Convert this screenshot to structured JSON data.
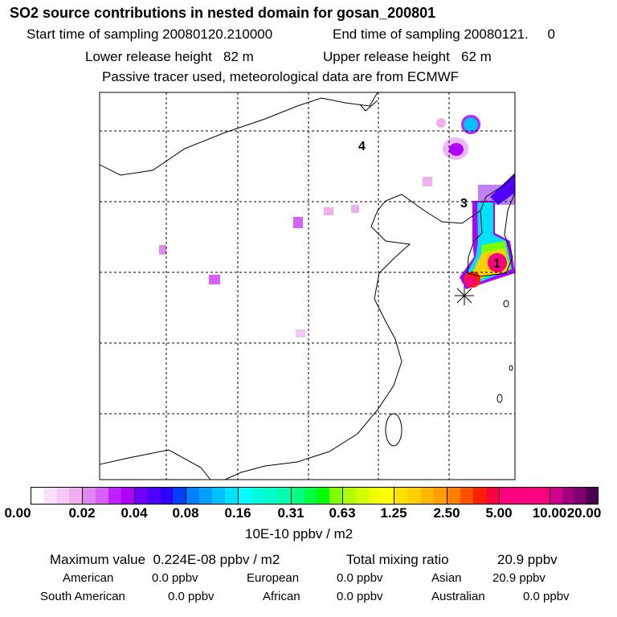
{
  "header": {
    "title": "SO2 source contributions in nested domain for gosan_200801",
    "start_label": "Start time of sampling 20080120.210000",
    "end_label": "End time of sampling 20080121.     0",
    "lower_label": "Lower release height   82 m",
    "upper_label": "Upper release height   62 m",
    "note": "Passive tracer used, meteorological data are from ECMWF"
  },
  "map": {
    "cluster_labels": [
      "4",
      "3",
      "1"
    ]
  },
  "colorbar": {
    "ticks": [
      "0.00",
      "0.02",
      "0.04",
      "0.08",
      "0.16",
      "0.31",
      "0.63",
      "1.25",
      "2.50",
      "5.00",
      "10.00",
      "20.00"
    ],
    "segment_colors": [
      [
        "#ffffff",
        "#fbe0fb",
        "#f6c8f6",
        "#f0b0f0"
      ],
      [
        "#e088f0",
        "#d860f8",
        "#c020ff",
        "#b000ff"
      ],
      [
        "#7000ff",
        "#5000ff",
        "#3000ff",
        "#0040ff"
      ],
      [
        "#0080ff",
        "#00a0ff",
        "#00c0ff",
        "#00e0ff"
      ],
      [
        "#00ffff",
        "#00ffe0",
        "#00ffc8",
        "#00ffb0"
      ],
      [
        "#00ff80",
        "#00ff40",
        "#00ff00",
        "#80ff00"
      ],
      [
        "#b0ff00",
        "#d0ff00",
        "#f0ff00",
        "#ffff00"
      ],
      [
        "#ffe000",
        "#ffd000",
        "#ffb800",
        "#ffa000"
      ],
      [
        "#ff8000",
        "#ff5000",
        "#ff2000",
        "#ff0040"
      ],
      [
        "#ff0080",
        "#ff0080",
        "#ff0080",
        "#ff0080"
      ],
      [
        "#d00090",
        "#a00080",
        "#800070",
        "#500050"
      ]
    ],
    "unit": "10E-10 ppbv / m2"
  },
  "summary": {
    "max_label": "Maximum value  0.224E-08 ppbv / m2",
    "total_label": "Total mixing ratio",
    "total_value": "20.9 ppbv",
    "regions": [
      {
        "name": "American",
        "value": "0.0 ppbv"
      },
      {
        "name": "European",
        "value": "0.0 ppbv"
      },
      {
        "name": "Asian",
        "value": "20.9 ppbv"
      },
      {
        "name": "South American",
        "value": "0.0 ppbv"
      },
      {
        "name": "African",
        "value": "0.0 ppbv"
      },
      {
        "name": "Australian",
        "value": "0.0 ppbv"
      }
    ]
  }
}
